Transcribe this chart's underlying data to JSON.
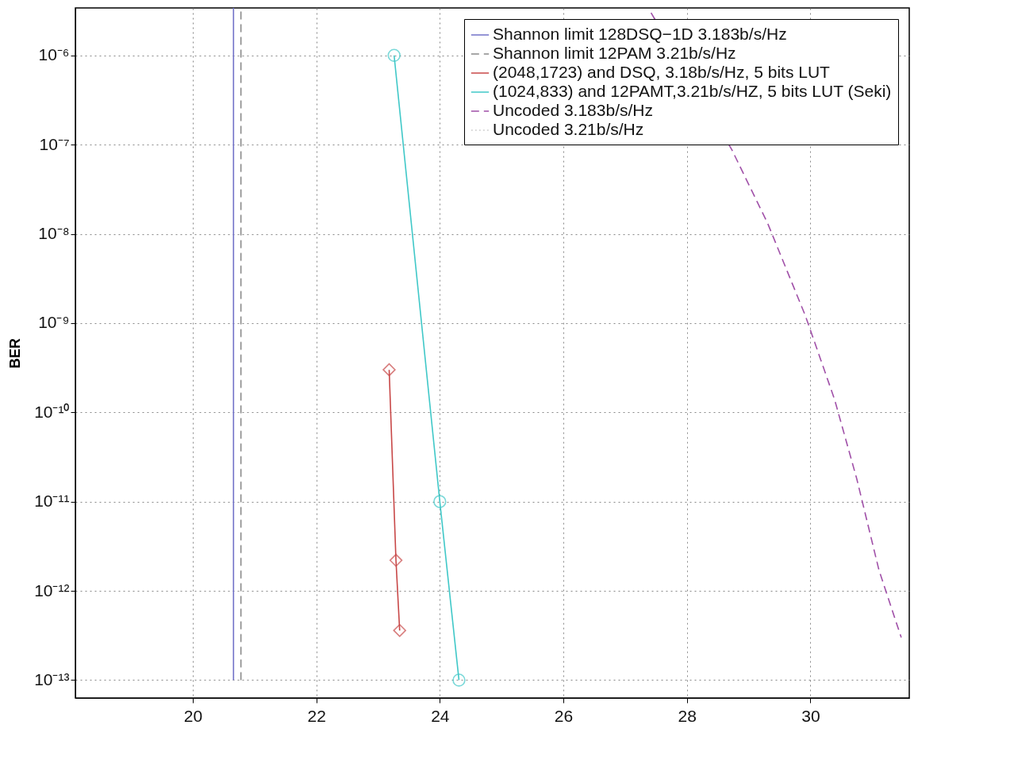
{
  "chart_data": {
    "type": "line",
    "ylabel": "BER",
    "log": "y",
    "grid": true,
    "legend": "top right",
    "xlim": [
      18.1,
      31.6
    ],
    "xticks": [
      20,
      22,
      24,
      26,
      28,
      30
    ],
    "ylim": [
      6.3e-14,
      3.4e-06
    ],
    "yticks": [
      {
        "value": 1e-06,
        "label": "10⁻⁶"
      },
      {
        "value": 1e-07,
        "label": "10⁻⁷"
      },
      {
        "value": 1e-08,
        "label": "10⁻⁸"
      },
      {
        "value": 1e-09,
        "label": "10⁻⁹"
      },
      {
        "value": 1e-10,
        "label": "10⁻¹⁰"
      },
      {
        "value": 1e-11,
        "label": "10⁻¹¹"
      },
      {
        "value": 1e-12,
        "label": "10⁻¹²"
      },
      {
        "value": 1e-13,
        "label": "10⁻¹³"
      }
    ],
    "series": [
      {
        "name": "Shannon limit 128DSQ−1D 3.183b/s/Hz",
        "color": "#7272c8",
        "line_style": "solid",
        "marker": "none",
        "x": [
          20.66,
          20.66
        ],
        "values": [
          1e-13,
          3.4e-06
        ]
      },
      {
        "name": "Shannon limit 12PAM 3.21b/s/Hz",
        "color": "#8a8a8a",
        "line_style": "dashed",
        "marker": "none",
        "x": [
          20.78,
          20.78
        ],
        "values": [
          1e-13,
          3.4e-06
        ]
      },
      {
        "name": "(2048,1723) and DSQ, 3.18b/s/Hz, 5 bits LUT",
        "color": "#c84848",
        "line_style": "solid",
        "marker": "diamond",
        "x": [
          23.18,
          23.29,
          23.35
        ],
        "values": [
          3e-10,
          2.2e-12,
          3.6e-13
        ]
      },
      {
        "name": "(1024,833) and 12PAMT,3.21b/s/HZ, 5 bits LUT (Seki)",
        "color": "#40c8c8",
        "line_style": "solid",
        "marker": "circle",
        "x": [
          23.26,
          24.0,
          24.31
        ],
        "values": [
          1e-06,
          1e-11,
          1e-13
        ]
      },
      {
        "name": "Uncoded 3.183b/s/Hz",
        "color": "#a050a8",
        "line_style": "dashed",
        "marker": "none",
        "x": [
          27.42,
          28.73,
          29.31,
          29.92,
          30.39,
          30.75,
          31.11,
          31.47
        ],
        "values": [
          3e-06,
          8.7e-08,
          1.3e-08,
          1.2e-09,
          1.4e-10,
          1.8e-11,
          1.7e-12,
          3e-13
        ]
      },
      {
        "name": "Uncoded 3.21b/s/Hz",
        "color": "#d0d0d0",
        "line_style": "dotted",
        "marker": "none"
      }
    ]
  }
}
